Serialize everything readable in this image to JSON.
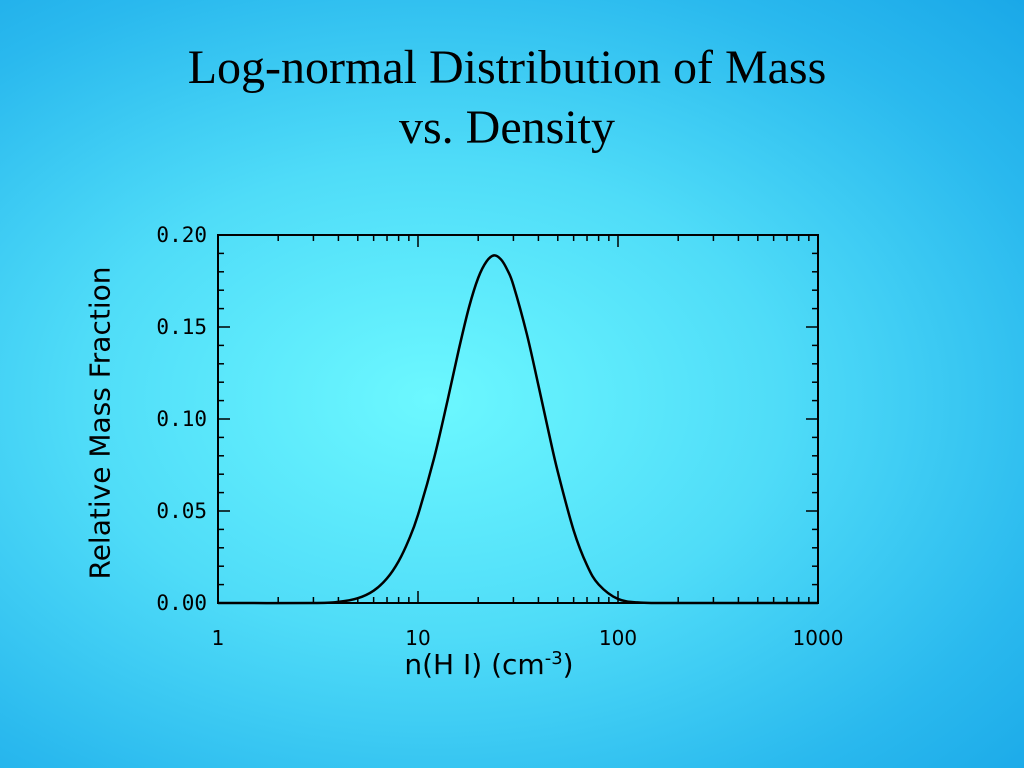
{
  "slide": {
    "title_line1": "Log-normal Distribution of Mass",
    "title_line2": "vs. Density"
  },
  "chart_data": {
    "type": "line",
    "xlabel_base": "n(H I) (cm",
    "xlabel_sup": "-3",
    "xlabel_tail": ")",
    "ylabel": "Relative Mass Fraction",
    "x_scale": "log",
    "xlim": [
      1,
      1000
    ],
    "ylim": [
      0,
      0.2
    ],
    "x_ticks": [
      "1",
      "10",
      "100",
      "1000"
    ],
    "y_ticks": [
      "0.00",
      "0.05",
      "0.10",
      "0.15",
      "0.20"
    ],
    "grid": false,
    "series": [
      {
        "x": [
          1,
          3,
          4,
          5,
          6,
          7,
          8,
          9,
          10,
          12,
          14,
          16,
          18,
          20,
          22,
          24,
          26,
          28,
          30,
          35,
          40,
          45,
          50,
          60,
          70,
          80,
          100,
          130,
          200,
          1000
        ],
        "values": [
          0.0,
          0.0,
          0.0006,
          0.0026,
          0.0067,
          0.0134,
          0.0227,
          0.0344,
          0.0479,
          0.0782,
          0.1093,
          0.1378,
          0.1608,
          0.1767,
          0.1856,
          0.1889,
          0.1867,
          0.1809,
          0.1727,
          0.1462,
          0.1183,
          0.0929,
          0.0713,
          0.0395,
          0.0205,
          0.0101,
          0.0022,
          0.0002,
          0.0,
          0.0
        ]
      }
    ]
  },
  "style": {
    "line_color": "#000000",
    "axis_color": "#000000"
  }
}
